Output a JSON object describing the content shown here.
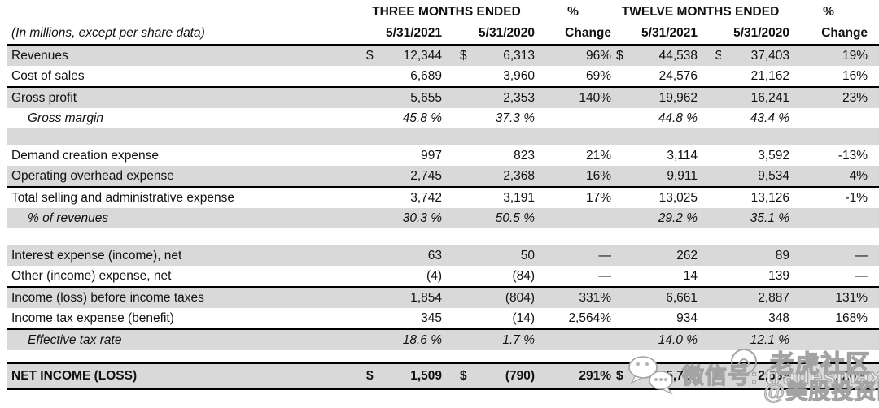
{
  "header": {
    "units_note": "(In millions, except per share data)",
    "group_three_months": "THREE MONTHS ENDED",
    "group_three_months_pct": "%",
    "group_twelve_months": "TWELVE MONTHS ENDED",
    "group_twelve_months_pct": "%",
    "sub_columns": [
      "5/31/2021",
      "5/31/2020",
      "Change",
      "5/31/2021",
      "5/31/2020",
      "Change"
    ]
  },
  "table": {
    "rows": [
      {
        "label": "Revenues",
        "d1": "$",
        "v1": "12,344",
        "d2": "$",
        "v2": "6,313",
        "c1": "96%",
        "d3": "$",
        "v3": "44,538",
        "d4": "$",
        "v4": "37,403",
        "c2": "19%",
        "shaded": true
      },
      {
        "label": "Cost of sales",
        "v1": "6,689",
        "v2": "3,960",
        "c1": "69%",
        "v3": "24,576",
        "v4": "21,162",
        "c2": "16%",
        "line": "thin"
      },
      {
        "label": "Gross profit",
        "v1": "5,655",
        "v2": "2,353",
        "c1": "140%",
        "v3": "19,962",
        "v4": "16,241",
        "c2": "23%",
        "shaded": true
      },
      {
        "label": "Gross margin",
        "italic": true,
        "indent": true,
        "v1": "45.8 %",
        "v2": "37.3 %",
        "v3": "44.8 %",
        "v4": "43.4 %"
      },
      {
        "blank": true,
        "shaded": true
      },
      {
        "label": "Demand creation expense",
        "v1": "997",
        "v2": "823",
        "c1": "21%",
        "v3": "3,114",
        "v4": "3,592",
        "c2": "-13%"
      },
      {
        "label": "Operating overhead expense",
        "v1": "2,745",
        "v2": "2,368",
        "c1": "16%",
        "v3": "9,911",
        "v4": "9,534",
        "c2": "4%",
        "shaded": true,
        "line": "thin"
      },
      {
        "label": "Total selling and administrative expense",
        "v1": "3,742",
        "v2": "3,191",
        "c1": "17%",
        "v3": "13,025",
        "v4": "13,126",
        "c2": "-1%"
      },
      {
        "label": "% of revenues",
        "italic": true,
        "indent": true,
        "v1": "30.3 %",
        "v2": "50.5 %",
        "v3": "29.2 %",
        "v4": "35.1 %",
        "shaded": true
      },
      {
        "blank": true
      },
      {
        "label": "Interest expense (income), net",
        "v1": "63",
        "v2": "50",
        "c1": "—",
        "v3": "262",
        "v4": "89",
        "c2": "—",
        "shaded": true
      },
      {
        "label": "Other (income) expense, net",
        "v1": "(4)",
        "v2": "(84)",
        "c1": "—",
        "v3": "14",
        "v4": "139",
        "c2": "—",
        "line": "thin"
      },
      {
        "label": "Income (loss) before income taxes",
        "v1": "1,854",
        "v2": "(804)",
        "c1": "331%",
        "v3": "6,661",
        "v4": "2,887",
        "c2": "131%",
        "shaded": true
      },
      {
        "label": "Income tax expense (benefit)",
        "v1": "345",
        "v2": "(14)",
        "c1": "2,564%",
        "v3": "934",
        "v4": "348",
        "c2": "168%",
        "line": "thin"
      },
      {
        "label": "Effective tax rate",
        "italic": true,
        "indent": true,
        "v1": "18.6 %",
        "v2": "1.7 %",
        "v3": "14.0 %",
        "v4": "12.1 %",
        "shaded": true
      },
      {
        "blank": true,
        "small": true
      },
      {
        "label": "NET INCOME (LOSS)",
        "bold": true,
        "tall": true,
        "d1": "$",
        "v1": "1,509",
        "d2": "$",
        "v2": "(790)",
        "c1": "291%",
        "d3": "$",
        "v3": "5,727",
        "d4": "$",
        "v4": "2,539",
        "c2": "126%",
        "shaded": true,
        "line": "thick",
        "line_top": "thick"
      }
    ]
  },
  "watermark": {
    "wechat_label": "微信号: tradesmax",
    "community_label": "老虎社区",
    "handle_label": "@美股投资网"
  },
  "colors": {
    "row_shade": "#d9d9d9",
    "rule": "#000000",
    "watermark_outline": "#a3a3a3",
    "text": "#111111"
  }
}
